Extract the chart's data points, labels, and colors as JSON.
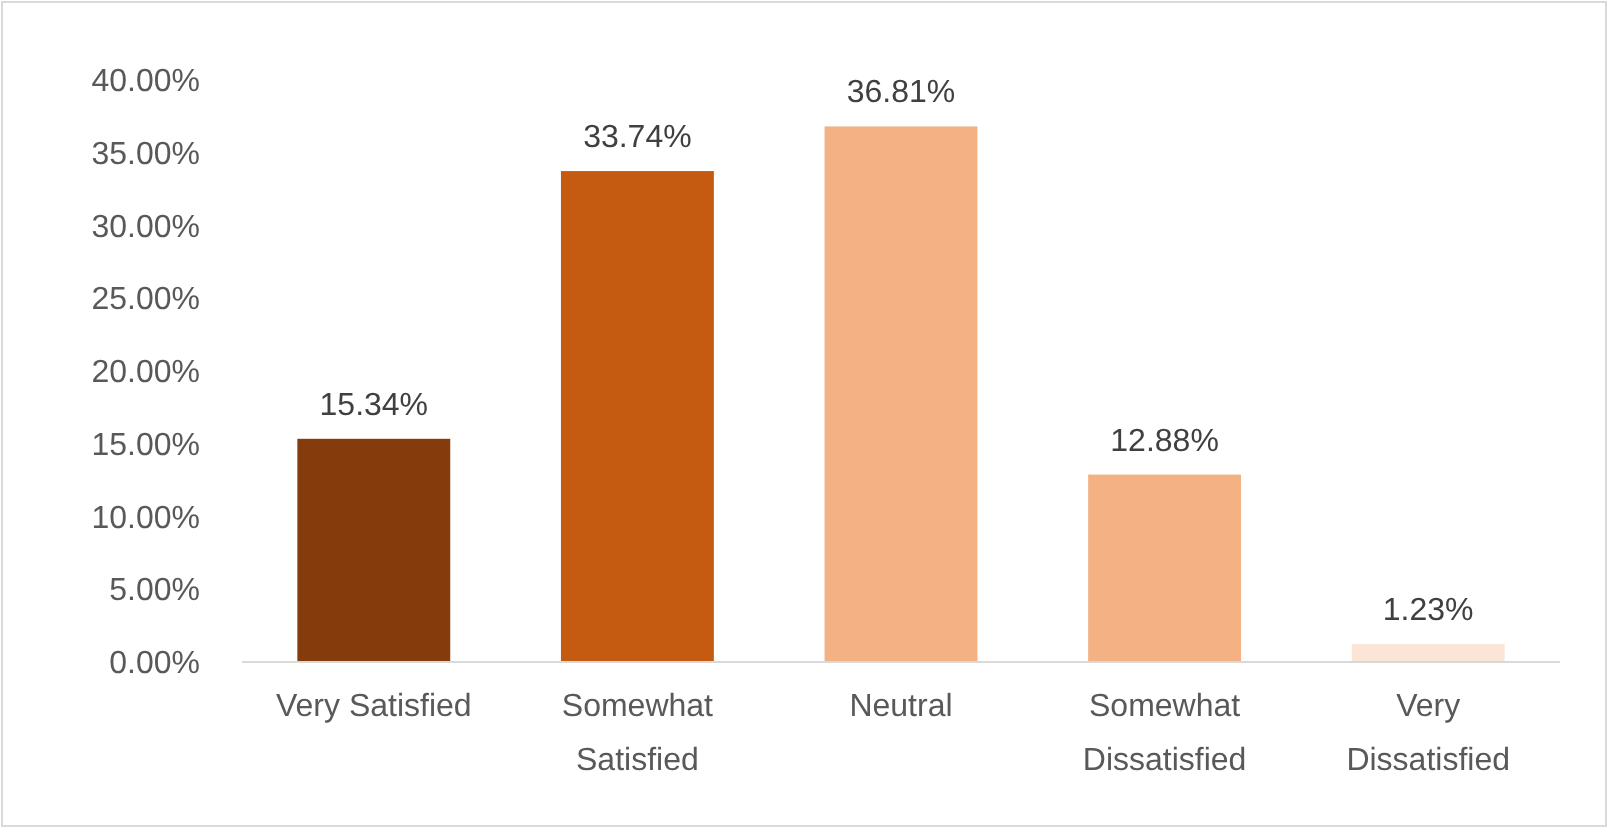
{
  "chart_data": {
    "type": "bar",
    "categories": [
      "Very Satisfied",
      "Somewhat Satisfied",
      "Neutral",
      "Somewhat Dissatisfied",
      "Very Dissatisfied"
    ],
    "values": [
      15.34,
      33.74,
      36.81,
      12.88,
      1.23
    ],
    "colors": [
      "#843c0c",
      "#c55a11",
      "#f4b183",
      "#f4b183",
      "#fbe5d6"
    ],
    "value_labels": [
      "15.34%",
      "33.74%",
      "36.81%",
      "12.88%",
      "1.23%"
    ],
    "ylim": [
      0,
      40
    ],
    "yticks": [
      {
        "value": 0,
        "label": "0.00%"
      },
      {
        "value": 5,
        "label": "5.00%"
      },
      {
        "value": 10,
        "label": "10.00%"
      },
      {
        "value": 15,
        "label": "15.00%"
      },
      {
        "value": 20,
        "label": "20.00%"
      },
      {
        "value": 25,
        "label": "25.00%"
      },
      {
        "value": 30,
        "label": "30.00%"
      },
      {
        "value": 35,
        "label": "35.00%"
      },
      {
        "value": 40,
        "label": "40.00%"
      }
    ],
    "grid": false
  }
}
